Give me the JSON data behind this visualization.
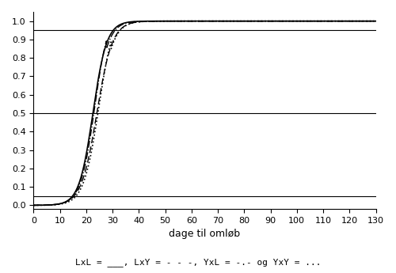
{
  "xlabel": "dage til omløb",
  "legend_text": "LxL = ___, LxY = - - -, YxL = -.- og YxY = ...",
  "xlim": [
    0,
    130
  ],
  "ylim": [
    -0.02,
    1.05
  ],
  "hlines": [
    0.05,
    0.5,
    0.95
  ],
  "xticks": [
    0,
    10,
    20,
    30,
    40,
    50,
    60,
    70,
    80,
    90,
    100,
    110,
    120,
    130
  ],
  "yticks": [
    0.0,
    0.1,
    0.2,
    0.3,
    0.4,
    0.5,
    0.6,
    0.7,
    0.8,
    0.9,
    1.0
  ],
  "figsize": [
    5.0,
    3.45
  ],
  "dpi": 100
}
